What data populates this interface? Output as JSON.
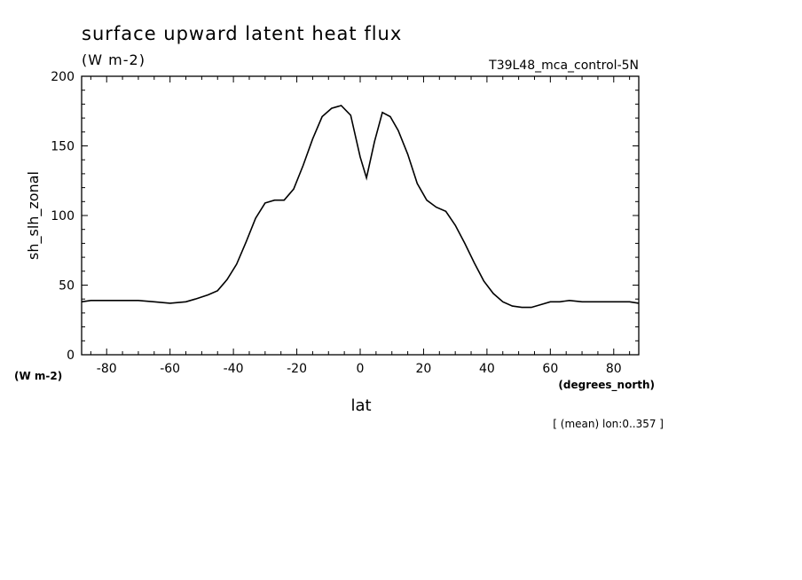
{
  "chart_data": {
    "type": "line",
    "title": "surface upward latent heat flux",
    "units": "(W m-2)",
    "run_label": "T39L48_mca_control-5N",
    "ylabel": "sh_slh_zonal",
    "y_unit_label": "(W m-2)",
    "xlabel": "lat",
    "x_unit_label": "(degrees_north)",
    "footnote": "[ (mean) lon:0..357 ]",
    "xlim": [
      -87.9,
      87.9
    ],
    "ylim": [
      0,
      200
    ],
    "x_ticks": [
      -80,
      -60,
      -40,
      -20,
      0,
      20,
      40,
      60,
      80
    ],
    "x_tick_labels": [
      "-80",
      "-60",
      "-40",
      "-20",
      "0",
      "20",
      "40",
      "60",
      "80"
    ],
    "y_ticks": [
      0,
      50,
      100,
      150,
      200
    ],
    "y_tick_labels": [
      "0",
      "50",
      "100",
      "150",
      "200"
    ],
    "grid": false,
    "series": [
      {
        "x": [
          -87.9,
          -85,
          -80,
          -75,
          -70,
          -65,
          -60,
          -55,
          -52,
          -48,
          -45,
          -42,
          -39,
          -36,
          -33,
          -30,
          -27,
          -24,
          -21,
          -18,
          -15,
          -12,
          -9,
          -6,
          -3,
          0,
          2,
          4.5,
          7,
          9.5,
          12,
          15,
          18,
          21,
          24,
          27,
          30,
          33,
          36,
          39,
          42,
          45,
          48,
          51,
          54,
          57,
          60,
          63,
          66,
          70,
          75,
          80,
          85,
          87.9
        ],
        "y": [
          38,
          39,
          39,
          39,
          39,
          38,
          37,
          38,
          40,
          43,
          46,
          54,
          65,
          81,
          98,
          109,
          111,
          111,
          119,
          136,
          155,
          171,
          177,
          179,
          172,
          142,
          127,
          153,
          174,
          171,
          161,
          144,
          123,
          111,
          106,
          103,
          93,
          80,
          66,
          53,
          44,
          38,
          35,
          34,
          34,
          36,
          38,
          38,
          39,
          38,
          38,
          38,
          38,
          37
        ]
      }
    ]
  }
}
